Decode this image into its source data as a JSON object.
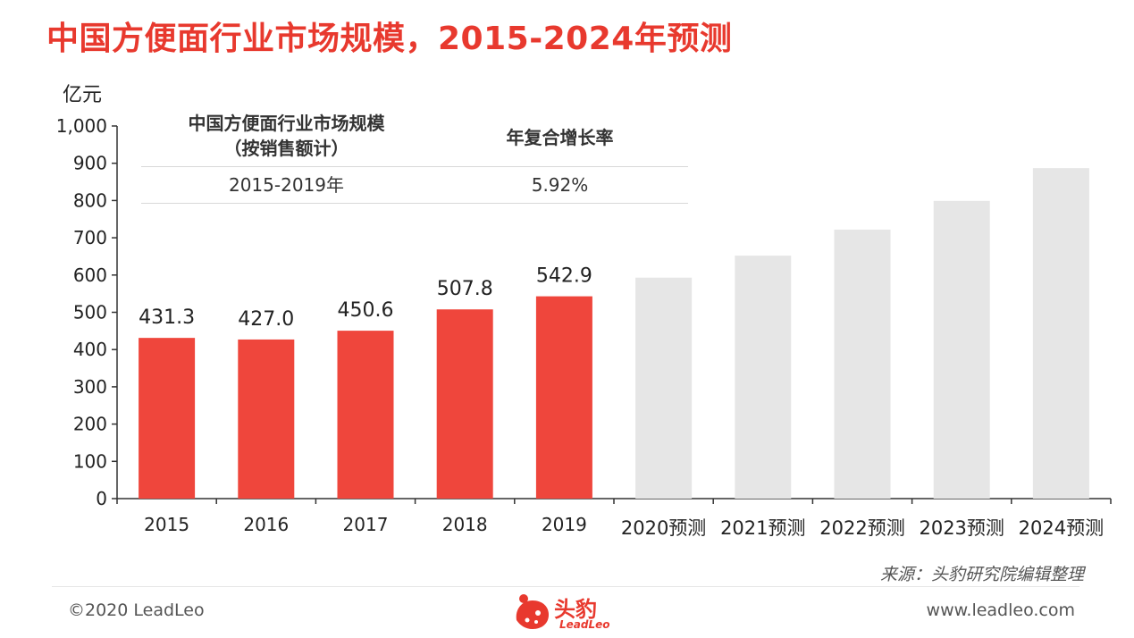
{
  "title": "中国方便面行业市场规模，2015-2024年预测",
  "unit_label": "亿元",
  "cagr_table": {
    "header_metric": "中国方便面行业市场规模",
    "header_metric_sub": "（按销售额计）",
    "header_rate": "年复合增长率",
    "rows": [
      {
        "period": "2015-2019年",
        "rate": "5.92%"
      }
    ]
  },
  "chart_data": {
    "type": "bar",
    "categories": [
      "2015",
      "2016",
      "2017",
      "2018",
      "2019",
      "2020预测",
      "2021预测",
      "2022预测",
      "2023预测",
      "2024预测"
    ],
    "series": [
      {
        "values": [
          431.3,
          427.0,
          450.6,
          507.8,
          542.9,
          593,
          652,
          722,
          799,
          887
        ]
      }
    ],
    "data_labels": [
      "431.3",
      "427.0",
      "450.6",
      "507.8",
      "542.9",
      null,
      null,
      null,
      null,
      null
    ],
    "actual_count": 5,
    "ylim": [
      0,
      1000
    ],
    "yticks": [
      0,
      100,
      200,
      300,
      400,
      500,
      600,
      700,
      800,
      900,
      1000
    ],
    "ytick_labels": [
      "0",
      "100",
      "200",
      "300",
      "400",
      "500",
      "600",
      "700",
      "800",
      "900",
      "1,000"
    ],
    "colors": {
      "actual": "#ef463c",
      "forecast": "#e6e6e6",
      "axis": "#333333"
    },
    "grid": false
  },
  "source": "来源：头豹研究院编辑整理",
  "copyright": "©2020 LeadLeo",
  "website": "www.leadleo.com",
  "logo": {
    "name": "头豹",
    "sub": "LeadLeo",
    "icon": "leopard-head-icon"
  }
}
